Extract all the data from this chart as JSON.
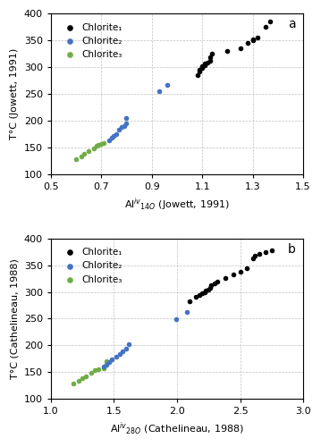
{
  "panel_a": {
    "label": "a",
    "xlabel": "Al$^{iv}$$_{14O}$ (Jowett, 1991)",
    "ylabel": "T°C (Jowett, 1991)",
    "xlim": [
      0.5,
      1.5
    ],
    "ylim": [
      100,
      400
    ],
    "xticks": [
      0.5,
      0.7,
      0.9,
      1.1,
      1.3,
      1.5
    ],
    "yticks": [
      100,
      150,
      200,
      250,
      300,
      350,
      400
    ],
    "chlorite1_x": [
      1.08,
      1.09,
      1.09,
      1.1,
      1.1,
      1.1,
      1.11,
      1.11,
      1.12,
      1.13,
      1.13,
      1.14,
      1.2,
      1.25,
      1.28,
      1.3,
      1.3,
      1.32,
      1.35,
      1.37
    ],
    "chlorite1_y": [
      285,
      291,
      295,
      298,
      300,
      302,
      304,
      306,
      308,
      312,
      318,
      325,
      330,
      335,
      345,
      350,
      352,
      355,
      375,
      385
    ],
    "chlorite2_x": [
      0.73,
      0.74,
      0.75,
      0.76,
      0.77,
      0.78,
      0.79,
      0.8,
      0.8,
      0.93,
      0.96
    ],
    "chlorite2_y": [
      163,
      167,
      171,
      175,
      183,
      188,
      190,
      195,
      205,
      255,
      267
    ],
    "chlorite3_x": [
      0.6,
      0.62,
      0.63,
      0.65,
      0.67,
      0.68,
      0.69,
      0.7,
      0.71
    ],
    "chlorite3_y": [
      128,
      133,
      138,
      142,
      148,
      152,
      155,
      156,
      158
    ]
  },
  "panel_b": {
    "label": "b",
    "xlabel": "Al$^{iv}$$_{28O}$ (Cathelineau, 1988)",
    "ylabel": "T°C (Cathelineau, 1988)",
    "xlim": [
      1.0,
      3.0
    ],
    "ylim": [
      100,
      400
    ],
    "xticks": [
      1.0,
      1.5,
      2.0,
      2.5,
      3.0
    ],
    "yticks": [
      100,
      150,
      200,
      250,
      300,
      350,
      400
    ],
    "chlorite1_x": [
      2.1,
      2.15,
      2.18,
      2.2,
      2.22,
      2.23,
      2.25,
      2.26,
      2.27,
      2.3,
      2.32,
      2.38,
      2.45,
      2.5,
      2.55,
      2.6,
      2.62,
      2.65,
      2.7,
      2.75
    ],
    "chlorite1_y": [
      283,
      290,
      294,
      297,
      300,
      302,
      305,
      308,
      312,
      316,
      320,
      326,
      332,
      338,
      345,
      363,
      367,
      371,
      375,
      378
    ],
    "chlorite2_x": [
      1.42,
      1.44,
      1.46,
      1.48,
      1.52,
      1.55,
      1.57,
      1.6,
      1.62,
      1.99,
      2.08
    ],
    "chlorite2_y": [
      161,
      164,
      168,
      173,
      178,
      183,
      188,
      194,
      202,
      249,
      262
    ],
    "chlorite3_x": [
      1.18,
      1.22,
      1.25,
      1.28,
      1.32,
      1.35,
      1.38,
      1.42,
      1.44
    ],
    "chlorite3_y": [
      129,
      133,
      138,
      142,
      148,
      153,
      156,
      157,
      170
    ]
  },
  "colors": {
    "chlorite1": "#000000",
    "chlorite2": "#4472c4",
    "chlorite3": "#70ad47"
  },
  "marker_size": 16,
  "legend_labels": [
    "Chlorite₁",
    "Chlorite₂",
    "Chlorite₃"
  ],
  "background": "#ffffff",
  "grid_color": "#c0c0c0"
}
